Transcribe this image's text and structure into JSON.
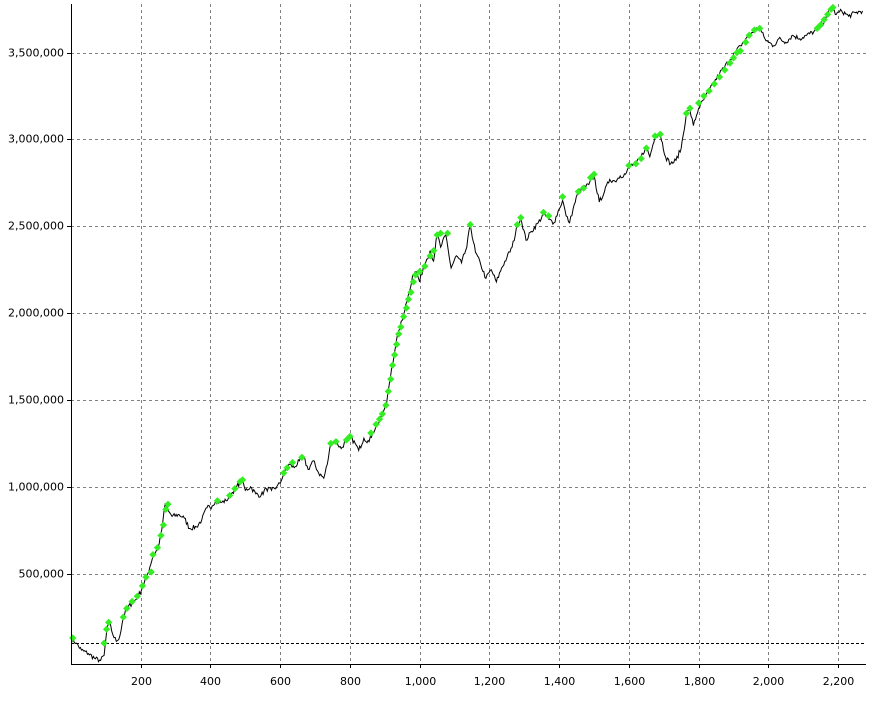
{
  "chart_data": {
    "type": "line",
    "title": "",
    "xlabel": "",
    "ylabel": "",
    "xlim": [
      0,
      2280
    ],
    "ylim": [
      -20000,
      3780000
    ],
    "grid": true,
    "legend": "none",
    "colors": {
      "equity_line": "#000000",
      "new_high_marker": "#33ee22",
      "grid": "#808080",
      "reference_line": "#000000"
    },
    "x_ticks": [
      {
        "value": 200,
        "label": "200"
      },
      {
        "value": 400,
        "label": "400"
      },
      {
        "value": 600,
        "label": "600"
      },
      {
        "value": 800,
        "label": "800"
      },
      {
        "value": 1000,
        "label": "1,000"
      },
      {
        "value": 1200,
        "label": "1,200"
      },
      {
        "value": 1400,
        "label": "1,400"
      },
      {
        "value": 1600,
        "label": "1,600"
      },
      {
        "value": 1800,
        "label": "1,800"
      },
      {
        "value": 2000,
        "label": "2,000"
      },
      {
        "value": 2200,
        "label": "2,200"
      }
    ],
    "y_ticks": [
      {
        "value": 500000,
        "label": "500,000"
      },
      {
        "value": 1000000,
        "label": "1,000,000"
      },
      {
        "value": 1500000,
        "label": "1,500,000"
      },
      {
        "value": 2000000,
        "label": "2,000,000"
      },
      {
        "value": 2500000,
        "label": "2,500,000"
      },
      {
        "value": 3000000,
        "label": "3,000,000"
      },
      {
        "value": 3500000,
        "label": "3,500,000"
      }
    ],
    "reference_line": 100000,
    "series": [
      {
        "values": [
          [
            0,
            130000
          ],
          [
            15,
            100000
          ],
          [
            30,
            60000
          ],
          [
            50,
            40000
          ],
          [
            70,
            10000
          ],
          [
            85,
            0
          ],
          [
            95,
            30000
          ],
          [
            103,
            180000
          ],
          [
            110,
            220000
          ],
          [
            120,
            150000
          ],
          [
            130,
            110000
          ],
          [
            140,
            140000
          ],
          [
            150,
            250000
          ],
          [
            160,
            300000
          ],
          [
            175,
            330000
          ],
          [
            190,
            360000
          ],
          [
            205,
            420000
          ],
          [
            220,
            500000
          ],
          [
            235,
            600000
          ],
          [
            250,
            650000
          ],
          [
            260,
            750000
          ],
          [
            270,
            900000
          ],
          [
            280,
            860000
          ],
          [
            290,
            830000
          ],
          [
            310,
            840000
          ],
          [
            325,
            820000
          ],
          [
            340,
            760000
          ],
          [
            360,
            770000
          ],
          [
            375,
            810000
          ],
          [
            390,
            880000
          ],
          [
            405,
            890000
          ],
          [
            415,
            920000
          ],
          [
            430,
            910000
          ],
          [
            445,
            920000
          ],
          [
            460,
            960000
          ],
          [
            475,
            1000000
          ],
          [
            490,
            1040000
          ],
          [
            500,
            980000
          ],
          [
            515,
            1000000
          ],
          [
            530,
            960000
          ],
          [
            545,
            950000
          ],
          [
            560,
            990000
          ],
          [
            575,
            980000
          ],
          [
            590,
            1000000
          ],
          [
            600,
            1020000
          ],
          [
            610,
            1080000
          ],
          [
            625,
            1130000
          ],
          [
            640,
            1110000
          ],
          [
            655,
            1150000
          ],
          [
            665,
            1180000
          ],
          [
            680,
            1100000
          ],
          [
            695,
            1150000
          ],
          [
            710,
            1080000
          ],
          [
            725,
            1050000
          ],
          [
            735,
            1130000
          ],
          [
            745,
            1250000
          ],
          [
            760,
            1260000
          ],
          [
            775,
            1220000
          ],
          [
            790,
            1270000
          ],
          [
            800,
            1290000
          ],
          [
            815,
            1250000
          ],
          [
            825,
            1210000
          ],
          [
            840,
            1280000
          ],
          [
            855,
            1260000
          ],
          [
            865,
            1310000
          ],
          [
            875,
            1350000
          ],
          [
            885,
            1380000
          ],
          [
            895,
            1430000
          ],
          [
            905,
            1480000
          ],
          [
            912,
            1580000
          ],
          [
            920,
            1690000
          ],
          [
            930,
            1800000
          ],
          [
            940,
            1900000
          ],
          [
            950,
            1960000
          ],
          [
            960,
            2050000
          ],
          [
            970,
            2120000
          ],
          [
            980,
            2220000
          ],
          [
            990,
            2240000
          ],
          [
            1000,
            2180000
          ],
          [
            1010,
            2260000
          ],
          [
            1020,
            2310000
          ],
          [
            1030,
            2360000
          ],
          [
            1040,
            2300000
          ],
          [
            1050,
            2460000
          ],
          [
            1060,
            2380000
          ],
          [
            1075,
            2450000
          ],
          [
            1090,
            2260000
          ],
          [
            1105,
            2330000
          ],
          [
            1120,
            2290000
          ],
          [
            1135,
            2380000
          ],
          [
            1145,
            2510000
          ],
          [
            1160,
            2350000
          ],
          [
            1175,
            2280000
          ],
          [
            1190,
            2200000
          ],
          [
            1205,
            2250000
          ],
          [
            1220,
            2180000
          ],
          [
            1235,
            2260000
          ],
          [
            1250,
            2320000
          ],
          [
            1265,
            2380000
          ],
          [
            1280,
            2500000
          ],
          [
            1290,
            2550000
          ],
          [
            1305,
            2420000
          ],
          [
            1320,
            2470000
          ],
          [
            1340,
            2520000
          ],
          [
            1355,
            2570000
          ],
          [
            1370,
            2540000
          ],
          [
            1385,
            2520000
          ],
          [
            1400,
            2600000
          ],
          [
            1410,
            2650000
          ],
          [
            1420,
            2560000
          ],
          [
            1430,
            2520000
          ],
          [
            1440,
            2600000
          ],
          [
            1455,
            2700000
          ],
          [
            1470,
            2720000
          ],
          [
            1485,
            2740000
          ],
          [
            1500,
            2790000
          ],
          [
            1515,
            2640000
          ],
          [
            1530,
            2700000
          ],
          [
            1545,
            2770000
          ],
          [
            1560,
            2760000
          ],
          [
            1575,
            2790000
          ],
          [
            1590,
            2800000
          ],
          [
            1605,
            2850000
          ],
          [
            1620,
            2860000
          ],
          [
            1635,
            2900000
          ],
          [
            1650,
            2960000
          ],
          [
            1660,
            2900000
          ],
          [
            1675,
            3020000
          ],
          [
            1690,
            3030000
          ],
          [
            1705,
            2900000
          ],
          [
            1720,
            2860000
          ],
          [
            1735,
            2880000
          ],
          [
            1750,
            2950000
          ],
          [
            1765,
            3150000
          ],
          [
            1775,
            3170000
          ],
          [
            1785,
            3080000
          ],
          [
            1800,
            3180000
          ],
          [
            1815,
            3230000
          ],
          [
            1830,
            3280000
          ],
          [
            1845,
            3330000
          ],
          [
            1860,
            3380000
          ],
          [
            1875,
            3420000
          ],
          [
            1890,
            3460000
          ],
          [
            1905,
            3500000
          ],
          [
            1920,
            3540000
          ],
          [
            1935,
            3580000
          ],
          [
            1950,
            3610000
          ],
          [
            1960,
            3630000
          ],
          [
            1975,
            3640000
          ],
          [
            1990,
            3580000
          ],
          [
            2000,
            3560000
          ],
          [
            2015,
            3540000
          ],
          [
            2030,
            3580000
          ],
          [
            2050,
            3560000
          ],
          [
            2070,
            3600000
          ],
          [
            2090,
            3580000
          ],
          [
            2110,
            3600000
          ],
          [
            2130,
            3620000
          ],
          [
            2150,
            3650000
          ],
          [
            2165,
            3700000
          ],
          [
            2180,
            3760000
          ],
          [
            2195,
            3720000
          ],
          [
            2210,
            3740000
          ],
          [
            2230,
            3710000
          ],
          [
            2250,
            3730000
          ],
          [
            2270,
            3740000
          ]
        ],
        "new_highs": [
          [
            5,
            130000
          ],
          [
            95,
            100000
          ],
          [
            102,
            180000
          ],
          [
            108,
            220000
          ],
          [
            150,
            250000
          ],
          [
            160,
            300000
          ],
          [
            175,
            340000
          ],
          [
            190,
            370000
          ],
          [
            205,
            430000
          ],
          [
            215,
            480000
          ],
          [
            230,
            510000
          ],
          [
            235,
            610000
          ],
          [
            248,
            650000
          ],
          [
            258,
            720000
          ],
          [
            265,
            780000
          ],
          [
            272,
            870000
          ],
          [
            278,
            900000
          ],
          [
            420,
            920000
          ],
          [
            455,
            950000
          ],
          [
            470,
            990000
          ],
          [
            485,
            1030000
          ],
          [
            492,
            1040000
          ],
          [
            610,
            1080000
          ],
          [
            620,
            1110000
          ],
          [
            635,
            1140000
          ],
          [
            662,
            1170000
          ],
          [
            745,
            1250000
          ],
          [
            760,
            1260000
          ],
          [
            790,
            1270000
          ],
          [
            800,
            1290000
          ],
          [
            860,
            1310000
          ],
          [
            875,
            1360000
          ],
          [
            885,
            1390000
          ],
          [
            893,
            1420000
          ],
          [
            903,
            1470000
          ],
          [
            910,
            1550000
          ],
          [
            917,
            1620000
          ],
          [
            922,
            1700000
          ],
          [
            928,
            1760000
          ],
          [
            934,
            1820000
          ],
          [
            940,
            1880000
          ],
          [
            946,
            1920000
          ],
          [
            954,
            1980000
          ],
          [
            962,
            2030000
          ],
          [
            968,
            2080000
          ],
          [
            975,
            2120000
          ],
          [
            982,
            2180000
          ],
          [
            988,
            2220000
          ],
          [
            1000,
            2240000
          ],
          [
            1015,
            2270000
          ],
          [
            1030,
            2330000
          ],
          [
            1040,
            2360000
          ],
          [
            1050,
            2450000
          ],
          [
            1060,
            2460000
          ],
          [
            1080,
            2460000
          ],
          [
            1145,
            2510000
          ],
          [
            1280,
            2510000
          ],
          [
            1290,
            2550000
          ],
          [
            1355,
            2580000
          ],
          [
            1370,
            2560000
          ],
          [
            1410,
            2670000
          ],
          [
            1455,
            2700000
          ],
          [
            1470,
            2720000
          ],
          [
            1490,
            2780000
          ],
          [
            1500,
            2800000
          ],
          [
            1600,
            2850000
          ],
          [
            1620,
            2860000
          ],
          [
            1635,
            2890000
          ],
          [
            1650,
            2950000
          ],
          [
            1675,
            3020000
          ],
          [
            1690,
            3030000
          ],
          [
            1765,
            3150000
          ],
          [
            1775,
            3180000
          ],
          [
            1800,
            3210000
          ],
          [
            1815,
            3250000
          ],
          [
            1830,
            3280000
          ],
          [
            1845,
            3320000
          ],
          [
            1860,
            3360000
          ],
          [
            1875,
            3400000
          ],
          [
            1890,
            3440000
          ],
          [
            1900,
            3470000
          ],
          [
            1910,
            3500000
          ],
          [
            1920,
            3510000
          ],
          [
            1935,
            3560000
          ],
          [
            1945,
            3600000
          ],
          [
            1960,
            3630000
          ],
          [
            1975,
            3640000
          ],
          [
            2140,
            3640000
          ],
          [
            2150,
            3660000
          ],
          [
            2160,
            3690000
          ],
          [
            2170,
            3720000
          ],
          [
            2180,
            3750000
          ],
          [
            2185,
            3760000
          ]
        ]
      }
    ]
  }
}
